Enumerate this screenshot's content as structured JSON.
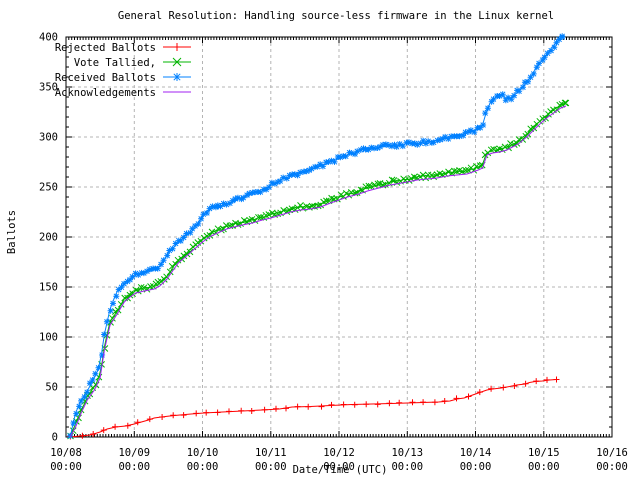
{
  "title": "General Resolution: Handling source-less firmware in the Linux kernel",
  "chart_data": {
    "type": "line",
    "title": "General Resolution: Handling source-less firmware in the Linux kernel",
    "xlabel": "Date/Time (UTC)",
    "ylabel": "Ballots",
    "x_unit": "hours since 10/08 00:00 UTC",
    "xlim": [
      0,
      192
    ],
    "ylim": [
      0,
      400
    ],
    "grid": true,
    "legend_position": "top-left",
    "grid_color": "#b4b4b4",
    "xticks": [
      {
        "h": 0,
        "date": "10/08",
        "time": "00:00"
      },
      {
        "h": 24,
        "date": "10/09",
        "time": "00:00"
      },
      {
        "h": 48,
        "date": "10/10",
        "time": "00:00"
      },
      {
        "h": 72,
        "date": "10/11",
        "time": "00:00"
      },
      {
        "h": 96,
        "date": "10/12",
        "time": "00:00"
      },
      {
        "h": 120,
        "date": "10/13",
        "time": "00:00"
      },
      {
        "h": 144,
        "date": "10/14",
        "time": "00:00"
      },
      {
        "h": 168,
        "date": "10/15",
        "time": "00:00"
      },
      {
        "h": 192,
        "date": "10/16",
        "time": "00:00"
      }
    ],
    "yticks": [
      0,
      50,
      100,
      150,
      200,
      250,
      300,
      350,
      400
    ],
    "series": [
      {
        "name": "Rejected Ballots",
        "color": "#ff0000",
        "marker": "plus",
        "dense": false,
        "points": [
          [
            1.5,
            0
          ],
          [
            5,
            1
          ],
          [
            8.5,
            2
          ],
          [
            12,
            5
          ],
          [
            14.5,
            8
          ],
          [
            17.5,
            10
          ],
          [
            21,
            11
          ],
          [
            24,
            13
          ],
          [
            26.5,
            15
          ],
          [
            29,
            17
          ],
          [
            31,
            19
          ],
          [
            33.5,
            20
          ],
          [
            36.5,
            21
          ],
          [
            40,
            22
          ],
          [
            44,
            23
          ],
          [
            48.5,
            24
          ],
          [
            55,
            25
          ],
          [
            62,
            26
          ],
          [
            69,
            27
          ],
          [
            75,
            28
          ],
          [
            79.5,
            30
          ],
          [
            86,
            30.5
          ],
          [
            93,
            31.5
          ],
          [
            100.5,
            32.5
          ],
          [
            107.5,
            33
          ],
          [
            114.5,
            33.5
          ],
          [
            120,
            34
          ],
          [
            125.5,
            34.5
          ],
          [
            131,
            35
          ],
          [
            135,
            36
          ],
          [
            137.5,
            38
          ],
          [
            140,
            39
          ],
          [
            142,
            41
          ],
          [
            144,
            43
          ],
          [
            146,
            45
          ],
          [
            148,
            47
          ],
          [
            150,
            48
          ],
          [
            153,
            49
          ],
          [
            156,
            50.5
          ],
          [
            158.5,
            52
          ],
          [
            161.5,
            53
          ],
          [
            163,
            54.5
          ],
          [
            165,
            55.5
          ],
          [
            167.5,
            56
          ],
          [
            170,
            57
          ],
          [
            172.5,
            57.5
          ]
        ]
      },
      {
        "name": "Vote Tallied,",
        "color": "#00b400",
        "marker": "cross",
        "dense": true,
        "points": [
          [
            1.5,
            0
          ],
          [
            3.5,
            14
          ],
          [
            5.5,
            28
          ],
          [
            7.5,
            40
          ],
          [
            10,
            50
          ],
          [
            12,
            62
          ],
          [
            13.5,
            90
          ],
          [
            15.5,
            115
          ],
          [
            18,
            126
          ],
          [
            20.5,
            138
          ],
          [
            22.5,
            143
          ],
          [
            24.5,
            147
          ],
          [
            27.5,
            149
          ],
          [
            31,
            151
          ],
          [
            33,
            154
          ],
          [
            35.5,
            161
          ],
          [
            37.5,
            169
          ],
          [
            39.5,
            177
          ],
          [
            42,
            183
          ],
          [
            44,
            188
          ],
          [
            46,
            193
          ],
          [
            48,
            198
          ],
          [
            51,
            204
          ],
          [
            54,
            208
          ],
          [
            56.5,
            211
          ],
          [
            59,
            213
          ],
          [
            62,
            215
          ],
          [
            65.5,
            217
          ],
          [
            69,
            220
          ],
          [
            72,
            222
          ],
          [
            75.5,
            225
          ],
          [
            79,
            228
          ],
          [
            82.5,
            230
          ],
          [
            86,
            231
          ],
          [
            89.5,
            233
          ],
          [
            93,
            237
          ],
          [
            96,
            240
          ],
          [
            99,
            243
          ],
          [
            103,
            246
          ],
          [
            106,
            249
          ],
          [
            110,
            252
          ],
          [
            114,
            255
          ],
          [
            118,
            257
          ],
          [
            120,
            258
          ],
          [
            123.5,
            260
          ],
          [
            127,
            261
          ],
          [
            130.5,
            262
          ],
          [
            134,
            264
          ],
          [
            137.5,
            265
          ],
          [
            141,
            266
          ],
          [
            143,
            268
          ],
          [
            145,
            270
          ],
          [
            146.5,
            272
          ],
          [
            148,
            285
          ],
          [
            150,
            287
          ],
          [
            152.5,
            288
          ],
          [
            155,
            290
          ],
          [
            157,
            293
          ],
          [
            159.5,
            297
          ],
          [
            162,
            303
          ],
          [
            164.5,
            310
          ],
          [
            167,
            317
          ],
          [
            169.5,
            323
          ],
          [
            172,
            328
          ],
          [
            174,
            332
          ],
          [
            175.8,
            334
          ]
        ]
      },
      {
        "name": "Received Ballots",
        "color": "#0080ff",
        "marker": "star",
        "dense": true,
        "points": [
          [
            1.5,
            0
          ],
          [
            3,
            22
          ],
          [
            5,
            35
          ],
          [
            7,
            44
          ],
          [
            8.5,
            52
          ],
          [
            10,
            60
          ],
          [
            12,
            72
          ],
          [
            13.5,
            103
          ],
          [
            15.5,
            128
          ],
          [
            18,
            146
          ],
          [
            21,
            154
          ],
          [
            24,
            161
          ],
          [
            26,
            164
          ],
          [
            29.5,
            166
          ],
          [
            32,
            168
          ],
          [
            34,
            175
          ],
          [
            36.5,
            186
          ],
          [
            39,
            194
          ],
          [
            42,
            201
          ],
          [
            44.5,
            207
          ],
          [
            46.5,
            214
          ],
          [
            48,
            222
          ],
          [
            50,
            227
          ],
          [
            52.5,
            230
          ],
          [
            55,
            232
          ],
          [
            58,
            234
          ],
          [
            60.5,
            238
          ],
          [
            63,
            241
          ],
          [
            66,
            243
          ],
          [
            69,
            246
          ],
          [
            72,
            252
          ],
          [
            75.5,
            257
          ],
          [
            79,
            261
          ],
          [
            82.5,
            264
          ],
          [
            86,
            267
          ],
          [
            89.5,
            271
          ],
          [
            93,
            275
          ],
          [
            96,
            279
          ],
          [
            99,
            282
          ],
          [
            103,
            286
          ],
          [
            105,
            288
          ],
          [
            109,
            289
          ],
          [
            112,
            291
          ],
          [
            116,
            291.5
          ],
          [
            120,
            293
          ],
          [
            123.5,
            294
          ],
          [
            127,
            295
          ],
          [
            130.5,
            297
          ],
          [
            134,
            299
          ],
          [
            137.5,
            301
          ],
          [
            141,
            304
          ],
          [
            143,
            306
          ],
          [
            145,
            308
          ],
          [
            146.5,
            313
          ],
          [
            148,
            327
          ],
          [
            149.5,
            336
          ],
          [
            151,
            340
          ],
          [
            153.5,
            341
          ],
          [
            155,
            337.5
          ],
          [
            157,
            340
          ],
          [
            158.5,
            345
          ],
          [
            160.5,
            350
          ],
          [
            162.5,
            357
          ],
          [
            164.5,
            365
          ],
          [
            166.5,
            373
          ],
          [
            169,
            382
          ],
          [
            171,
            390
          ],
          [
            173,
            396
          ],
          [
            174.5,
            400
          ]
        ]
      },
      {
        "name": "Acknowledgements",
        "color": "#a020f0",
        "marker": "none",
        "dense": false,
        "points": [
          [
            1.5,
            0
          ],
          [
            3.5,
            11
          ],
          [
            5.5,
            25
          ],
          [
            7.5,
            37
          ],
          [
            10,
            47
          ],
          [
            12,
            59
          ],
          [
            13.5,
            87
          ],
          [
            15.5,
            112
          ],
          [
            18,
            123
          ],
          [
            20.5,
            135
          ],
          [
            22.5,
            140
          ],
          [
            24.5,
            144
          ],
          [
            27.5,
            146
          ],
          [
            31,
            148
          ],
          [
            33,
            151
          ],
          [
            35.5,
            158
          ],
          [
            37.5,
            166
          ],
          [
            39.5,
            174
          ],
          [
            42,
            180
          ],
          [
            44,
            185
          ],
          [
            46,
            190
          ],
          [
            48,
            195
          ],
          [
            51,
            201
          ],
          [
            54,
            205
          ],
          [
            56.5,
            208
          ],
          [
            59,
            210
          ],
          [
            62,
            212
          ],
          [
            65.5,
            214
          ],
          [
            69,
            217
          ],
          [
            72,
            219
          ],
          [
            75.5,
            222
          ],
          [
            79,
            225
          ],
          [
            82.5,
            227
          ],
          [
            86,
            228
          ],
          [
            89.5,
            230
          ],
          [
            93,
            234
          ],
          [
            96,
            237
          ],
          [
            99,
            240
          ],
          [
            103,
            243
          ],
          [
            106,
            246
          ],
          [
            110,
            249
          ],
          [
            114,
            252
          ],
          [
            118,
            254
          ],
          [
            120,
            255
          ],
          [
            123.5,
            257
          ],
          [
            127,
            258
          ],
          [
            130.5,
            259
          ],
          [
            134,
            261
          ],
          [
            137.5,
            262
          ],
          [
            141,
            263
          ],
          [
            143,
            265
          ],
          [
            145,
            267
          ],
          [
            146.5,
            269
          ],
          [
            148,
            282
          ],
          [
            150,
            284
          ],
          [
            152.5,
            285
          ],
          [
            155,
            287
          ],
          [
            157,
            290
          ],
          [
            159.5,
            294
          ],
          [
            162,
            300
          ],
          [
            164.5,
            307
          ],
          [
            167,
            314
          ],
          [
            169.5,
            320
          ],
          [
            172,
            325
          ],
          [
            174,
            329
          ],
          [
            175.8,
            331
          ]
        ]
      }
    ]
  }
}
